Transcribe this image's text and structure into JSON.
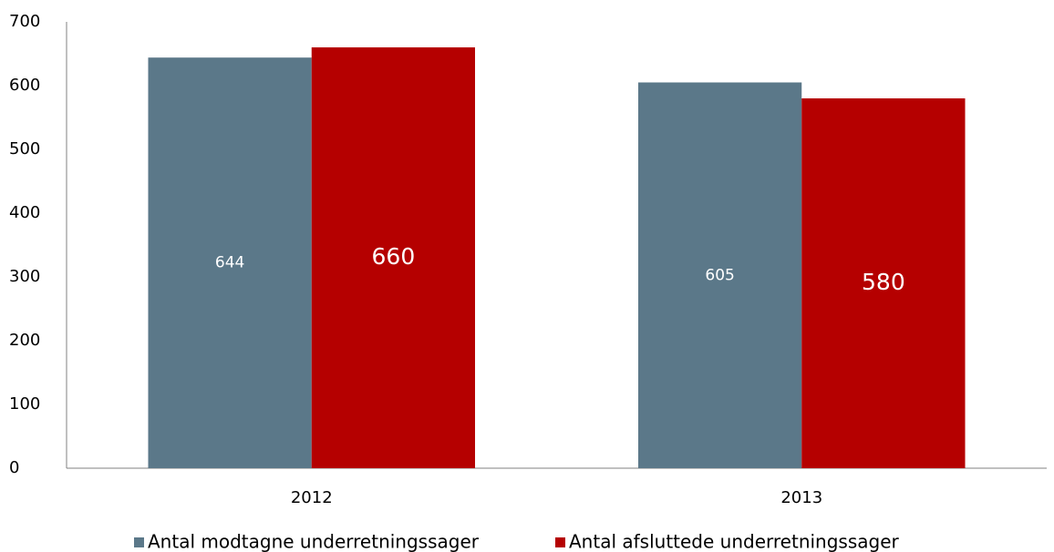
{
  "chart_data": {
    "type": "bar",
    "categories": [
      "2012",
      "2013"
    ],
    "series": [
      {
        "name": "Antal modtagne underretningssager",
        "color": "#5b7889",
        "values": [
          644,
          605
        ]
      },
      {
        "name": "Antal afsluttede underretningssager",
        "color": "#b50000",
        "values": [
          660,
          580
        ]
      }
    ],
    "ylim": [
      0,
      700
    ],
    "yticks": [
      0,
      100,
      200,
      300,
      400,
      500,
      600,
      700
    ],
    "grid": false,
    "legend": "bottom"
  }
}
